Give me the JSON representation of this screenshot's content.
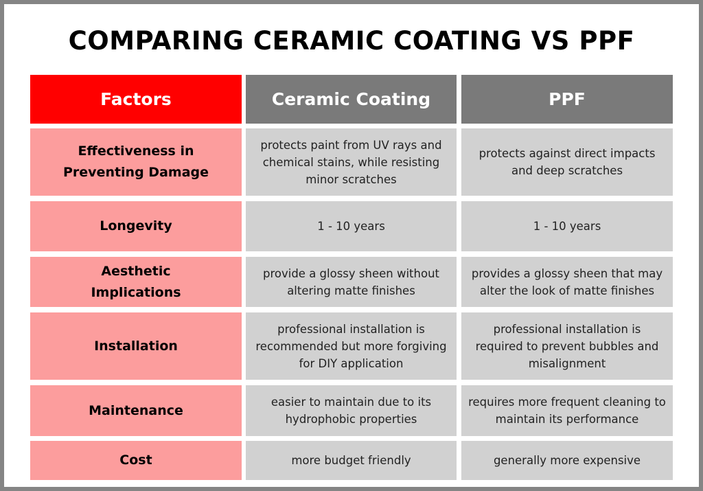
{
  "title": "COMPARING CERAMIC COATING VS PPF",
  "colors": {
    "factor_header": "#ff0000",
    "column_header": "#7a7a7a",
    "factor_cell": "#fc9d9d",
    "value_cell": "#d1d1d1",
    "border": "#858585"
  },
  "headers": [
    "Factors",
    "Ceramic Coating",
    "PPF"
  ],
  "rows": [
    {
      "factor": "Effectiveness in Preventing Damage",
      "ceramic": "protects paint from UV rays and chemical stains, while resisting minor scratches",
      "ppf": "protects against direct impacts and deep scratches"
    },
    {
      "factor": "Longevity",
      "ceramic": "1 - 10 years",
      "ppf": "1 - 10 years"
    },
    {
      "factor": "Aesthetic Implications",
      "ceramic": "provide a glossy sheen without altering matte finishes",
      "ppf": "provides a glossy sheen that may alter the look of matte finishes"
    },
    {
      "factor": "Installation",
      "ceramic": "professional installation is recommended but more forgiving for DIY application",
      "ppf": "professional installation is required to prevent bubbles and misalignment"
    },
    {
      "factor": "Maintenance",
      "ceramic": "easier to maintain due to its hydrophobic properties",
      "ppf": "requires more frequent cleaning to maintain its performance"
    },
    {
      "factor": "Cost",
      "ceramic": "more budget friendly",
      "ppf": "generally more expensive"
    }
  ]
}
